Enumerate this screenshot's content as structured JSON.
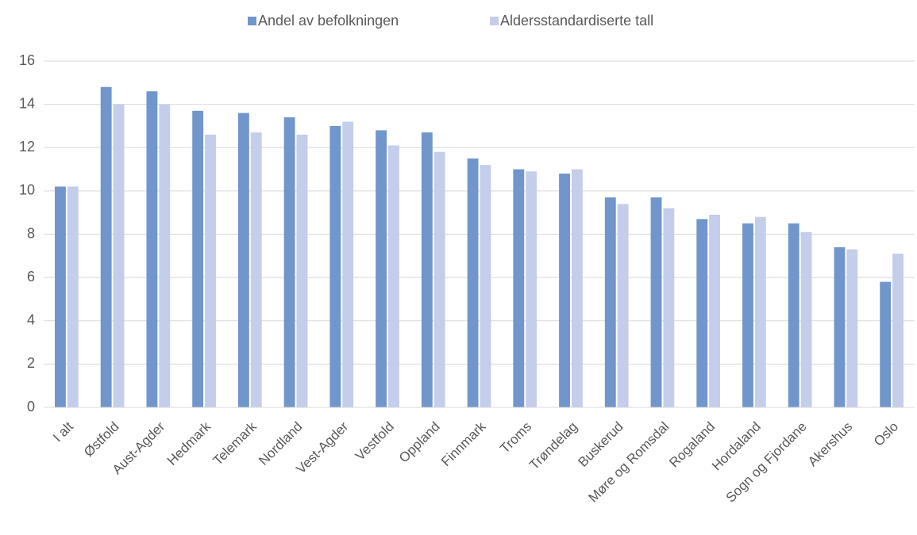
{
  "chart_data": {
    "type": "bar",
    "categories": [
      "I alt",
      "Østfold",
      "Aust-Agder",
      "Hedmark",
      "Telemark",
      "Nordland",
      "Vest-Agder",
      "Vestfold",
      "Oppland",
      "Finnmark",
      "Troms",
      "Trøndelag",
      "Buskerud",
      "Møre og Romsdal",
      "Rogaland",
      "Hordaland",
      "Sogn og Fjordane",
      "Akershus",
      "Oslo"
    ],
    "series": [
      {
        "name": "Andel av befolkningen",
        "color": "#7096cc",
        "values": [
          10.2,
          14.8,
          14.6,
          13.7,
          13.6,
          13.4,
          13.0,
          12.8,
          12.7,
          11.5,
          11.0,
          10.8,
          9.7,
          9.7,
          8.7,
          8.5,
          8.5,
          7.4,
          5.8
        ]
      },
      {
        "name": "Aldersstandardiserte tall",
        "color": "#c4cdea",
        "values": [
          10.2,
          14.0,
          14.0,
          12.6,
          12.7,
          12.6,
          13.2,
          12.1,
          11.8,
          11.2,
          10.9,
          11.0,
          9.4,
          9.2,
          8.9,
          8.8,
          8.1,
          7.3,
          7.1
        ]
      }
    ],
    "ylim": [
      0,
      16
    ],
    "yticks": [
      0,
      2,
      4,
      6,
      8,
      10,
      12,
      14,
      16
    ],
    "grid": true,
    "legend": "top"
  }
}
